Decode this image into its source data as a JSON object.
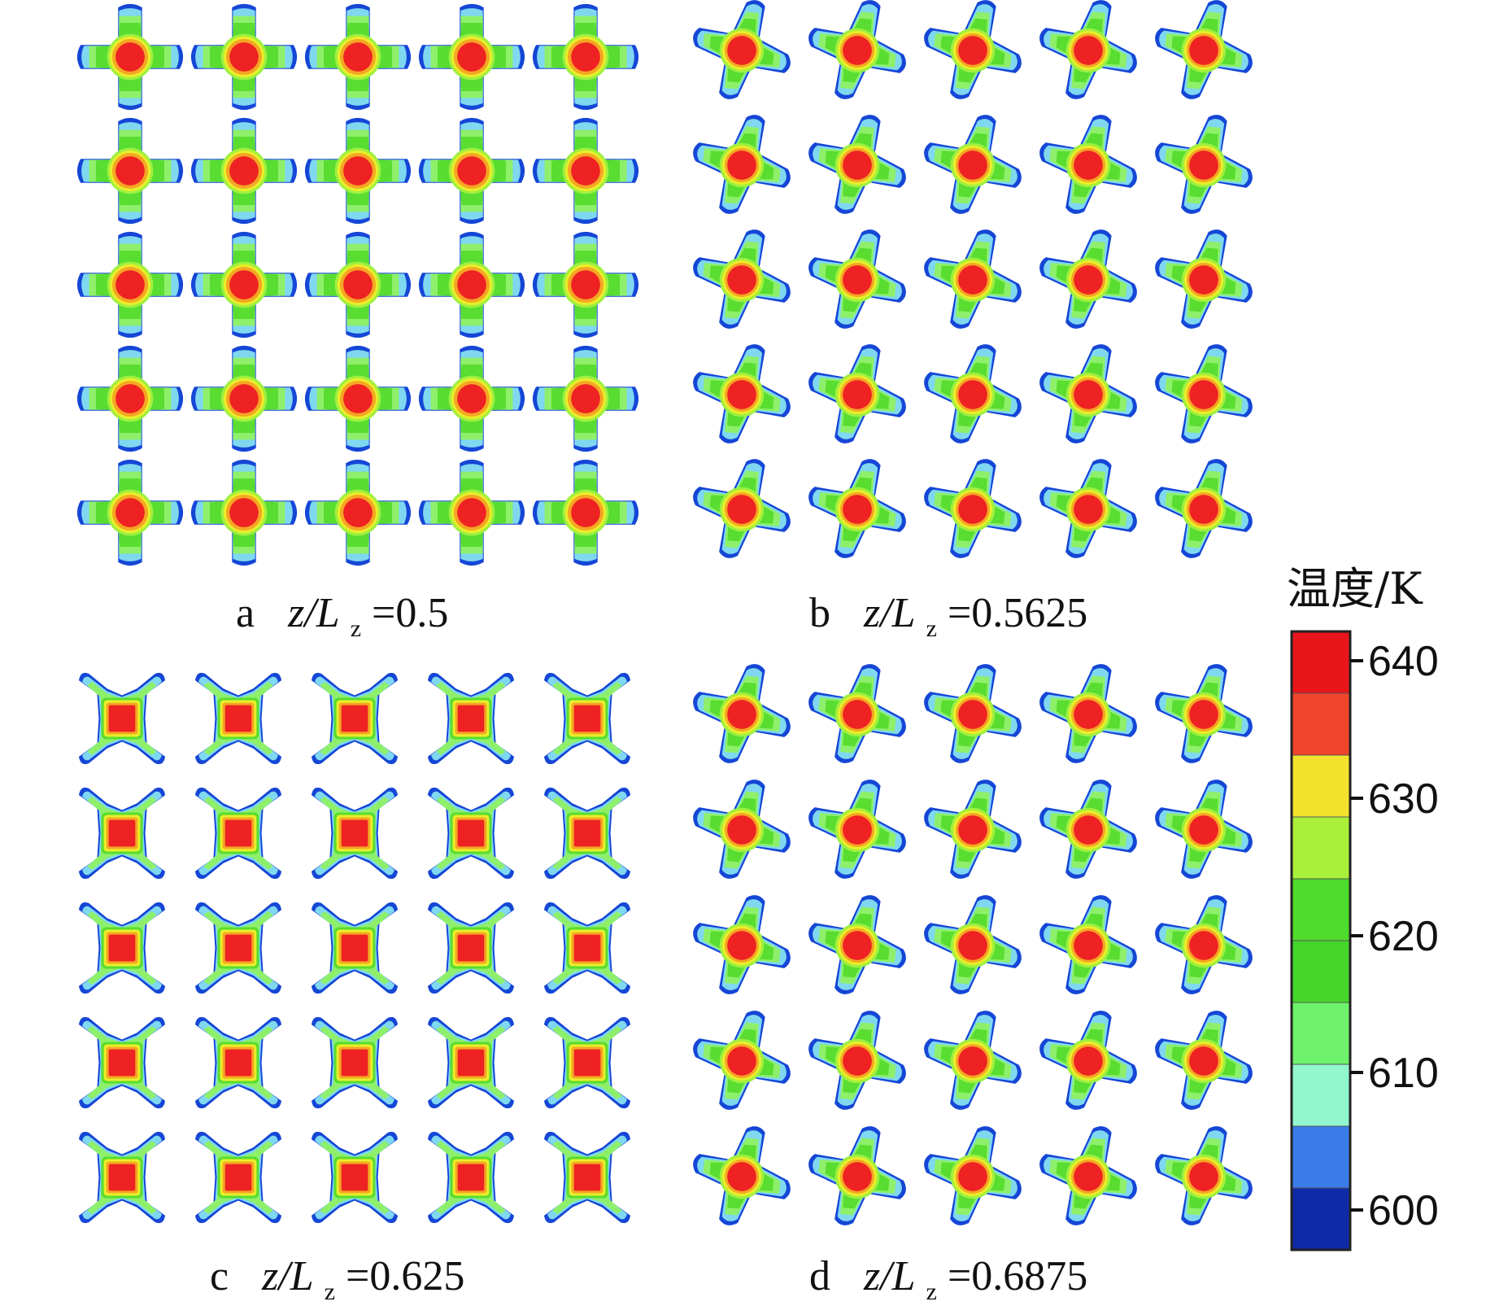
{
  "panels": [
    {
      "id": "a",
      "letter": "a",
      "var": "z/L",
      "sub": "z",
      "eq": "=0.5",
      "shape": "plus",
      "rotation_deg": 0
    },
    {
      "id": "b",
      "letter": "b",
      "var": "z/L",
      "sub": "z",
      "eq": "=0.5625",
      "shape": "hook",
      "rotation_deg": 22
    },
    {
      "id": "c",
      "letter": "c",
      "var": "z/L",
      "sub": "z",
      "eq": "=0.625",
      "shape": "x",
      "rotation_deg": 45
    },
    {
      "id": "d",
      "letter": "d",
      "var": "z/L",
      "sub": "z",
      "eq": "=0.6875",
      "shape": "hook",
      "rotation_deg": 22
    }
  ],
  "grid": {
    "rows": 5,
    "cols": 5
  },
  "colorbar": {
    "title": "温度/K",
    "ticks": [
      "640",
      "630",
      "620",
      "610",
      "600"
    ],
    "bands": [
      "#e8161b",
      "#f0452c",
      "#f2e22d",
      "#a8f03a",
      "#4fdc2c",
      "#45d62a",
      "#6ef26b",
      "#92f7cf",
      "#3a7be8",
      "#0f2aa8"
    ]
  },
  "colors": {
    "core": "#ee2222",
    "ring_orange": "#f5a623",
    "ring_yellow": "#e8ee2a",
    "body_green": "#58dd30",
    "light_green": "#8ef06a",
    "tip_cyan": "#7fd8f0",
    "tip_blue": "#1546d6"
  }
}
